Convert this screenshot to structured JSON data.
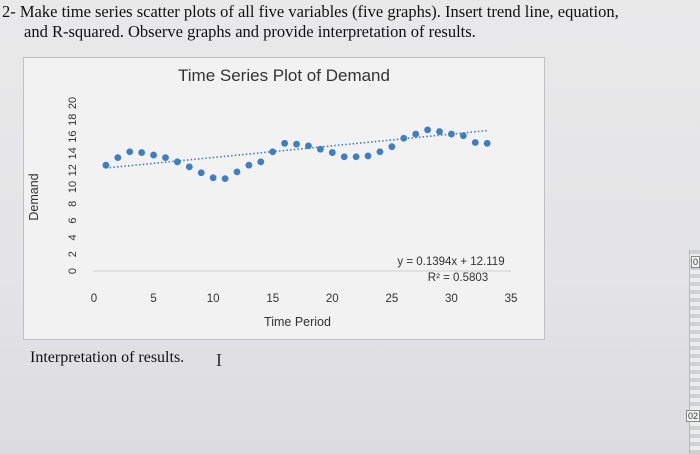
{
  "question": {
    "line1": "2- Make time series scatter plots of all five variables (five graphs). Insert trend line, equation,",
    "line2": "and R-squared. Observe graphs and provide interpretation of results."
  },
  "interpretation_label": "Interpretation of results.",
  "cursor_glyph": "I",
  "edge_labels": {
    "top": "0",
    "bottom": "02"
  },
  "colors": {
    "points": "#3f7fc1",
    "trendline": "#3f7fc1",
    "axis": "#d0d0d4"
  },
  "chart_data": {
    "type": "scatter",
    "title": "Time Series Plot of Demand",
    "xlabel": "Time Period",
    "ylabel": "Demand",
    "xlim": [
      0,
      35
    ],
    "ylim": [
      0,
      20
    ],
    "xticks": [
      "0",
      "5",
      "10",
      "15",
      "20",
      "25",
      "30",
      "35"
    ],
    "yticks": [
      "0",
      "2",
      "4",
      "6",
      "8",
      "10",
      "12",
      "14",
      "16",
      "18",
      "20"
    ],
    "grid": false,
    "series": [
      {
        "points": [
          [
            1,
            12.6
          ],
          [
            2,
            13.5
          ],
          [
            3,
            14.2
          ],
          [
            4,
            14.1
          ],
          [
            5,
            13.8
          ],
          [
            6,
            13.5
          ],
          [
            7,
            13.0
          ],
          [
            8,
            12.4
          ],
          [
            9,
            11.7
          ],
          [
            10,
            11.1
          ],
          [
            11,
            11.0
          ],
          [
            12,
            11.8
          ],
          [
            13,
            12.6
          ],
          [
            14,
            13.0
          ],
          [
            15,
            14.2
          ],
          [
            16,
            15.2
          ],
          [
            17,
            15.1
          ],
          [
            18,
            14.9
          ],
          [
            19,
            14.5
          ],
          [
            20,
            14.1
          ],
          [
            21,
            13.6
          ],
          [
            22,
            13.6
          ],
          [
            23,
            13.7
          ],
          [
            24,
            14.2
          ],
          [
            25,
            14.8
          ],
          [
            26,
            15.8
          ],
          [
            27,
            16.3
          ],
          [
            28,
            16.8
          ],
          [
            29,
            16.6
          ],
          [
            30,
            16.3
          ],
          [
            31,
            16.1
          ],
          [
            32,
            15.3
          ],
          [
            33,
            15.2
          ]
        ]
      }
    ],
    "trendline": {
      "slope": 0.1394,
      "intercept": 12.119,
      "equation": "y = 0.1394x + 12.119",
      "r2": "R² = 0.5803"
    }
  }
}
